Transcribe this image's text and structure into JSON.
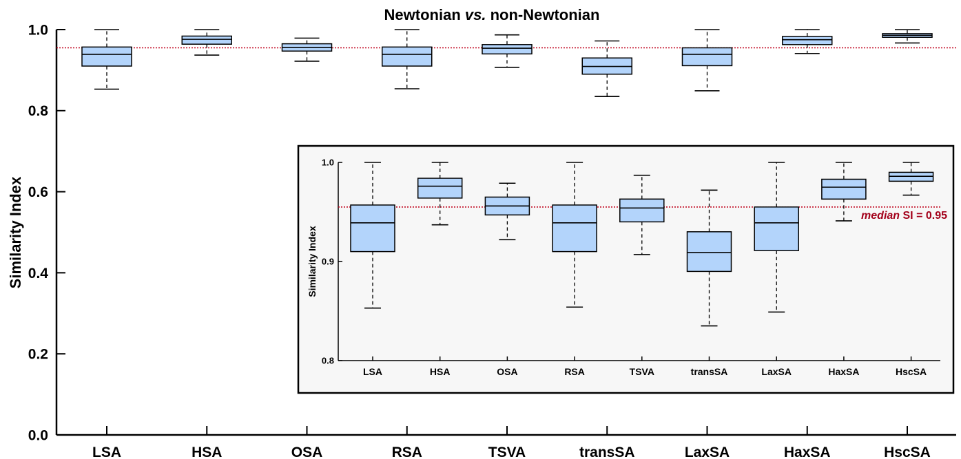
{
  "chart_data": [
    {
      "type": "box",
      "title": "Newtonian vs. non-Newtonian",
      "title_parts": {
        "pre": "Newtonian ",
        "italic": "vs.",
        "post": " non-Newtonian"
      },
      "xlabel": "",
      "ylabel": "Similarity Index",
      "ylim": [
        0,
        1
      ],
      "yticks": [
        "0.0",
        "0.2",
        "0.4",
        "0.6",
        "0.8",
        "1.0"
      ],
      "ytick_values": [
        0,
        0.2,
        0.4,
        0.6,
        0.8,
        1.0
      ],
      "categories": [
        "LSA",
        "HSA",
        "OSA",
        "RSA",
        "TSVA",
        "transSA",
        "LaxSA",
        "HaxSA",
        "HscSA"
      ],
      "median_reference": 0.955,
      "grid": false,
      "box_color": "#b3d4fb",
      "reference_color": "#c0001a",
      "series": [
        {
          "category": "LSA",
          "whisker_low": 0.853,
          "q1": 0.91,
          "median": 0.939,
          "q3": 0.957,
          "whisker_high": 1.0
        },
        {
          "category": "HSA",
          "whisker_low": 0.937,
          "q1": 0.964,
          "median": 0.976,
          "q3": 0.984,
          "whisker_high": 1.0
        },
        {
          "category": "OSA",
          "whisker_low": 0.922,
          "q1": 0.947,
          "median": 0.956,
          "q3": 0.965,
          "whisker_high": 0.979
        },
        {
          "category": "RSA",
          "whisker_low": 0.854,
          "q1": 0.91,
          "median": 0.939,
          "q3": 0.957,
          "whisker_high": 1.0
        },
        {
          "category": "TSVA",
          "whisker_low": 0.907,
          "q1": 0.94,
          "median": 0.954,
          "q3": 0.963,
          "whisker_high": 0.987
        },
        {
          "category": "transSA",
          "whisker_low": 0.835,
          "q1": 0.89,
          "median": 0.909,
          "q3": 0.93,
          "whisker_high": 0.972
        },
        {
          "category": "LaxSA",
          "whisker_low": 0.849,
          "q1": 0.911,
          "median": 0.939,
          "q3": 0.955,
          "whisker_high": 1.0
        },
        {
          "category": "HaxSA",
          "whisker_low": 0.941,
          "q1": 0.963,
          "median": 0.975,
          "q3": 0.983,
          "whisker_high": 1.0
        },
        {
          "category": "HscSA",
          "whisker_low": 0.967,
          "q1": 0.981,
          "median": 0.986,
          "q3": 0.99,
          "whisker_high": 1.0
        }
      ]
    },
    {
      "type": "box",
      "title": "",
      "xlabel": "",
      "ylabel": "Similarity Index",
      "ylim": [
        0.8,
        1.0
      ],
      "yticks": [
        "0.8",
        "0.9",
        "1.0"
      ],
      "ytick_values": [
        0.8,
        0.9,
        1.0
      ],
      "categories": [
        "LSA",
        "HSA",
        "OSA",
        "RSA",
        "TSVA",
        "transSA",
        "LaxSA",
        "HaxSA",
        "HscSA"
      ],
      "median_reference": 0.955,
      "annotation": {
        "italic": "median",
        "rest": " SI = 0.95"
      },
      "grid": false,
      "background": "#f7f7f7",
      "series_ref": "same as main chart"
    }
  ]
}
